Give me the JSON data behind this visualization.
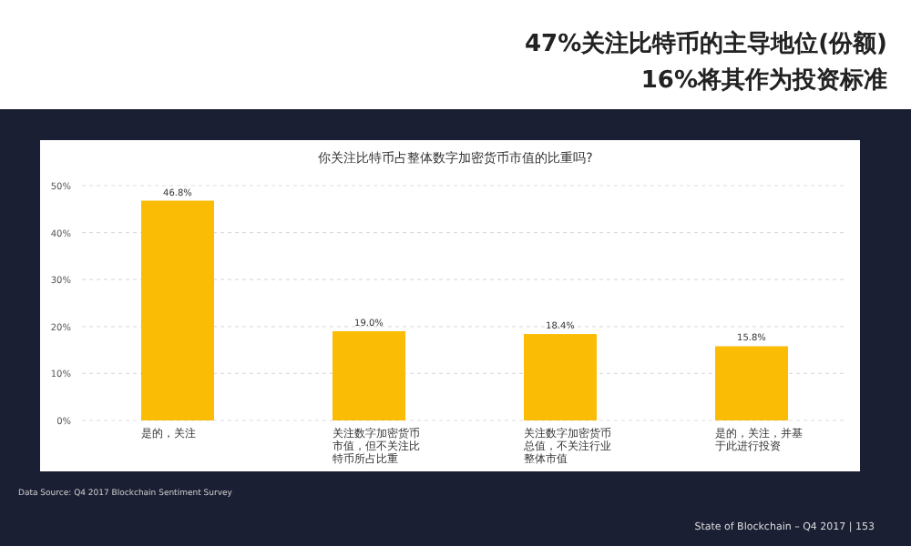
{
  "chart_data": {
    "type": "bar",
    "title": "你关注比特币占整体数字加密货币市值的比重吗?",
    "annotations": [
      "47%关注比特币的主导地位(份额)",
      "16%将其作为投资标准",
      "Data Source: Q4 2017 Blockchain Sentiment Survey",
      "State of Blockchain – Q4 2017  |  153"
    ],
    "categories": [
      "是的，关注",
      "关注数字加密货币市值，但不关注比特币所占比重",
      "关注数字加密货币总值，不关注行业整体市值",
      "是的，关注，并基于此进行投资"
    ],
    "values": [
      46.8,
      19.0,
      18.4,
      15.8
    ],
    "value_labels": [
      "46.8%",
      "19.0%",
      "18.4%",
      "15.8%"
    ],
    "color": "#fbbc05",
    "ylim": [
      0,
      50
    ],
    "yticks": [
      {
        "value": 0,
        "label": "0%"
      },
      {
        "value": 10,
        "label": "10%"
      },
      {
        "value": 20,
        "label": "20%"
      },
      {
        "value": 30,
        "label": "30%"
      },
      {
        "value": 40,
        "label": "40%"
      },
      {
        "value": 50,
        "label": "50%"
      }
    ],
    "grid": "y"
  }
}
